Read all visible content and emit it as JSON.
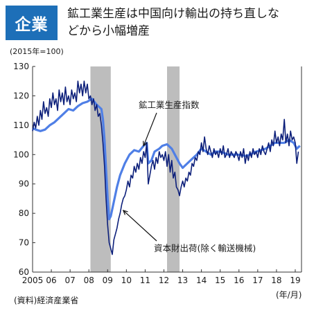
{
  "header": {
    "badge": "企業",
    "headline_line1": "鉱工業生産は中国向け輸出の持ち直しな",
    "headline_line2": "どから小幅増産"
  },
  "chart_data": {
    "type": "line",
    "unit_label": "(2015年=100)",
    "ylim": [
      60,
      130
    ],
    "yticks": [
      60,
      70,
      80,
      90,
      100,
      110,
      120,
      130
    ],
    "x_ticks": [
      "2005",
      "06",
      "07",
      "08",
      "09",
      "10",
      "11",
      "12",
      "13",
      "14",
      "15",
      "16",
      "17",
      "18",
      "19"
    ],
    "x_unit_label": "(年/月)",
    "source": "(資料)経済産業省",
    "recession_bands": [
      {
        "from": "2008-02",
        "to": "2009-03"
      },
      {
        "from": "2012-03",
        "to": "2012-11"
      }
    ],
    "series": [
      {
        "name": "鉱工業生産指数",
        "color": "#4f7fe6",
        "points": [
          [
            "2005-01",
            109
          ],
          [
            "2005-03",
            108.5
          ],
          [
            "2005-06",
            108
          ],
          [
            "2005-09",
            108.5
          ],
          [
            "2005-12",
            110
          ],
          [
            "2006-03",
            111
          ],
          [
            "2006-06",
            112.5
          ],
          [
            "2006-09",
            114
          ],
          [
            "2006-12",
            115.5
          ],
          [
            "2007-03",
            115
          ],
          [
            "2007-06",
            116.5
          ],
          [
            "2007-09",
            117.5
          ],
          [
            "2007-12",
            118
          ],
          [
            "2008-03",
            119
          ],
          [
            "2008-06",
            117
          ],
          [
            "2008-09",
            115.5
          ],
          [
            "2008-10",
            112
          ],
          [
            "2008-11",
            105
          ],
          [
            "2008-12",
            95
          ],
          [
            "2009-01",
            85
          ],
          [
            "2009-02",
            78
          ],
          [
            "2009-03",
            79
          ],
          [
            "2009-05",
            84
          ],
          [
            "2009-07",
            89
          ],
          [
            "2009-09",
            93
          ],
          [
            "2009-12",
            97
          ],
          [
            "2010-03",
            100
          ],
          [
            "2010-06",
            101.5
          ],
          [
            "2010-09",
            101
          ],
          [
            "2010-12",
            103
          ],
          [
            "2011-02",
            104
          ],
          [
            "2011-03",
            97
          ],
          [
            "2011-05",
            98
          ],
          [
            "2011-07",
            101
          ],
          [
            "2011-10",
            102
          ],
          [
            "2011-12",
            103
          ],
          [
            "2012-03",
            103.5
          ],
          [
            "2012-06",
            102
          ],
          [
            "2012-09",
            99
          ],
          [
            "2012-11",
            97
          ],
          [
            "2013-01",
            95.5
          ],
          [
            "2013-04",
            97
          ],
          [
            "2013-07",
            98.5
          ],
          [
            "2013-10",
            100
          ],
          [
            "2014-01",
            102
          ],
          [
            "2014-04",
            101
          ],
          [
            "2014-07",
            100
          ],
          [
            "2014-10",
            101
          ],
          [
            "2015-01",
            101
          ],
          [
            "2015-06",
            100
          ],
          [
            "2015-12",
            100
          ],
          [
            "2016-06",
            99.5
          ],
          [
            "2016-12",
            101
          ],
          [
            "2017-06",
            102
          ],
          [
            "2017-12",
            104
          ],
          [
            "2018-06",
            104
          ],
          [
            "2018-09",
            105
          ],
          [
            "2018-12",
            104
          ],
          [
            "2019-02",
            102
          ],
          [
            "2019-04",
            103
          ]
        ]
      },
      {
        "name": "資本財出荷(除く輸送機械)",
        "color": "#0c1f7a",
        "points": [
          [
            "2005-01",
            108
          ],
          [
            "2005-02",
            111
          ],
          [
            "2005-03",
            109
          ],
          [
            "2005-04",
            113
          ],
          [
            "2005-05",
            110
          ],
          [
            "2005-06",
            115
          ],
          [
            "2005-07",
            112
          ],
          [
            "2005-08",
            118
          ],
          [
            "2005-09",
            114
          ],
          [
            "2005-10",
            116
          ],
          [
            "2005-11",
            113
          ],
          [
            "2005-12",
            119
          ],
          [
            "2006-01",
            116
          ],
          [
            "2006-02",
            121
          ],
          [
            "2006-03",
            117
          ],
          [
            "2006-04",
            119
          ],
          [
            "2006-05",
            115
          ],
          [
            "2006-06",
            122
          ],
          [
            "2006-07",
            118
          ],
          [
            "2006-08",
            121
          ],
          [
            "2006-09",
            117
          ],
          [
            "2006-10",
            123
          ],
          [
            "2006-11",
            118
          ],
          [
            "2006-12",
            120
          ],
          [
            "2007-01",
            117
          ],
          [
            "2007-02",
            122
          ],
          [
            "2007-03",
            119
          ],
          [
            "2007-04",
            121
          ],
          [
            "2007-05",
            118
          ],
          [
            "2007-06",
            125
          ],
          [
            "2007-07",
            121
          ],
          [
            "2007-08",
            124
          ],
          [
            "2007-09",
            120
          ],
          [
            "2007-10",
            125
          ],
          [
            "2007-11",
            121
          ],
          [
            "2007-12",
            124
          ],
          [
            "2008-01",
            119
          ],
          [
            "2008-02",
            120
          ],
          [
            "2008-03",
            117
          ],
          [
            "2008-04",
            119
          ],
          [
            "2008-05",
            115
          ],
          [
            "2008-06",
            117
          ],
          [
            "2008-07",
            113
          ],
          [
            "2008-08",
            114
          ],
          [
            "2008-09",
            110
          ],
          [
            "2008-10",
            104
          ],
          [
            "2008-11",
            96
          ],
          [
            "2008-12",
            85
          ],
          [
            "2009-01",
            76
          ],
          [
            "2009-02",
            70
          ],
          [
            "2009-03",
            68
          ],
          [
            "2009-04",
            66
          ],
          [
            "2009-05",
            71
          ],
          [
            "2009-06",
            73
          ],
          [
            "2009-07",
            75
          ],
          [
            "2009-08",
            78
          ],
          [
            "2009-09",
            80
          ],
          [
            "2009-10",
            83
          ],
          [
            "2009-11",
            85
          ],
          [
            "2009-12",
            86
          ],
          [
            "2010-01",
            88
          ],
          [
            "2010-02",
            91
          ],
          [
            "2010-03",
            89
          ],
          [
            "2010-04",
            93
          ],
          [
            "2010-05",
            92
          ],
          [
            "2010-06",
            96
          ],
          [
            "2010-07",
            94
          ],
          [
            "2010-08",
            97
          ],
          [
            "2010-09",
            95
          ],
          [
            "2010-10",
            99
          ],
          [
            "2010-11",
            97
          ],
          [
            "2010-12",
            101
          ],
          [
            "2011-01",
            99
          ],
          [
            "2011-02",
            104
          ],
          [
            "2011-03",
            90
          ],
          [
            "2011-04",
            93
          ],
          [
            "2011-05",
            96
          ],
          [
            "2011-06",
            98
          ],
          [
            "2011-07",
            95
          ],
          [
            "2011-08",
            99
          ],
          [
            "2011-09",
            97
          ],
          [
            "2011-10",
            101
          ],
          [
            "2011-11",
            99
          ],
          [
            "2011-12",
            100
          ],
          [
            "2012-01",
            98
          ],
          [
            "2012-02",
            101
          ],
          [
            "2012-03",
            96
          ],
          [
            "2012-04",
            100
          ],
          [
            "2012-05",
            94
          ],
          [
            "2012-06",
            98
          ],
          [
            "2012-07",
            92
          ],
          [
            "2012-08",
            94
          ],
          [
            "2012-09",
            89
          ],
          [
            "2012-10",
            88
          ],
          [
            "2012-11",
            86
          ],
          [
            "2012-12",
            89
          ],
          [
            "2013-01",
            91
          ],
          [
            "2013-02",
            89
          ],
          [
            "2013-03",
            92
          ],
          [
            "2013-04",
            91
          ],
          [
            "2013-05",
            94
          ],
          [
            "2013-06",
            93
          ],
          [
            "2013-07",
            97
          ],
          [
            "2013-08",
            96
          ],
          [
            "2013-09",
            99
          ],
          [
            "2013-10",
            98
          ],
          [
            "2013-11",
            101
          ],
          [
            "2013-12",
            100
          ],
          [
            "2014-01",
            104
          ],
          [
            "2014-02",
            101
          ],
          [
            "2014-03",
            106
          ],
          [
            "2014-04",
            102
          ],
          [
            "2014-05",
            100
          ],
          [
            "2014-06",
            103
          ],
          [
            "2014-07",
            101
          ],
          [
            "2014-08",
            99
          ],
          [
            "2014-09",
            102
          ],
          [
            "2014-10",
            100
          ],
          [
            "2014-11",
            101
          ],
          [
            "2014-12",
            99
          ],
          [
            "2015-01",
            102
          ],
          [
            "2015-02",
            100
          ],
          [
            "2015-03",
            103
          ],
          [
            "2015-04",
            99
          ],
          [
            "2015-05",
            100
          ],
          [
            "2015-06",
            102
          ],
          [
            "2015-07",
            99
          ],
          [
            "2015-08",
            101
          ],
          [
            "2015-09",
            100
          ],
          [
            "2015-10",
            99
          ],
          [
            "2015-11",
            101
          ],
          [
            "2015-12",
            100
          ],
          [
            "2016-01",
            98
          ],
          [
            "2016-02",
            101
          ],
          [
            "2016-03",
            99
          ],
          [
            "2016-04",
            102
          ],
          [
            "2016-05",
            97
          ],
          [
            "2016-06",
            100
          ],
          [
            "2016-07",
            98
          ],
          [
            "2016-08",
            101
          ],
          [
            "2016-09",
            99
          ],
          [
            "2016-10",
            102
          ],
          [
            "2016-11",
            100
          ],
          [
            "2016-12",
            101
          ],
          [
            "2017-01",
            99
          ],
          [
            "2017-02",
            102
          ],
          [
            "2017-03",
            100
          ],
          [
            "2017-04",
            103
          ],
          [
            "2017-05",
            101
          ],
          [
            "2017-06",
            100
          ],
          [
            "2017-07",
            102
          ],
          [
            "2017-08",
            104
          ],
          [
            "2017-09",
            101
          ],
          [
            "2017-10",
            105
          ],
          [
            "2017-11",
            103
          ],
          [
            "2017-12",
            108
          ],
          [
            "2018-01",
            104
          ],
          [
            "2018-02",
            106
          ],
          [
            "2018-03",
            103
          ],
          [
            "2018-04",
            107
          ],
          [
            "2018-05",
            105
          ],
          [
            "2018-06",
            112
          ],
          [
            "2018-07",
            104
          ],
          [
            "2018-08",
            107
          ],
          [
            "2018-09",
            103
          ],
          [
            "2018-10",
            108
          ],
          [
            "2018-11",
            105
          ],
          [
            "2018-12",
            106
          ],
          [
            "2019-01",
            104
          ],
          [
            "2019-02",
            97
          ],
          [
            "2019-03",
            101
          ]
        ]
      }
    ],
    "annotations": [
      {
        "text": "鉱工業生産指数",
        "points_to": [
          "2010-12",
          103
        ]
      },
      {
        "text": "資本財出荷(除く輸送機械)",
        "points_to": [
          "2009-11",
          81
        ]
      }
    ]
  }
}
